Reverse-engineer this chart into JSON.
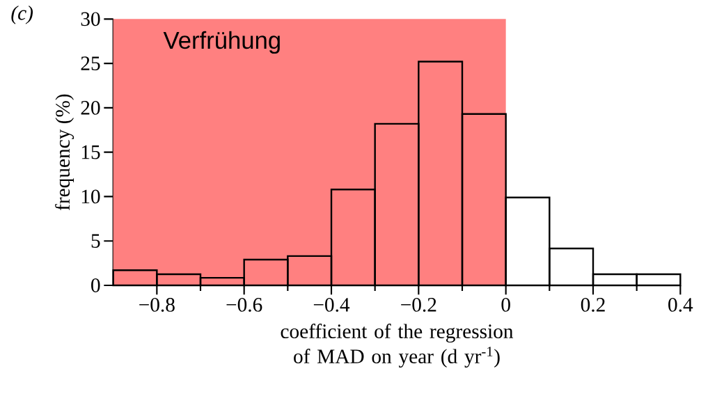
{
  "chart_data": {
    "type": "histogram",
    "bins": [
      -0.9,
      -0.8,
      -0.7,
      -0.6,
      -0.5,
      -0.4,
      -0.3,
      -0.2,
      -0.1,
      0,
      0.1,
      0.2,
      0.3,
      0.4
    ],
    "values": [
      1.7,
      1.25,
      0.85,
      2.9,
      3.3,
      10.8,
      18.2,
      25.2,
      19.3,
      9.9,
      4.15,
      1.25,
      1.25
    ],
    "color": "#000000",
    "xlabel": "coefficient of the regression of MAD on year (d yr$^{-1}$)",
    "ylabel": "frequency (%)",
    "xlim": [
      -0.9,
      0.4
    ],
    "xticks": [
      {
        "value": -0.8,
        "label": "−0.8"
      },
      {
        "value": -0.6,
        "label": "−0.6"
      },
      {
        "value": -0.4,
        "label": "−0.4"
      },
      {
        "value": -0.2,
        "label": "−0.2"
      },
      0,
      0.2,
      0.4
    ],
    "ylim": [
      0,
      30
    ],
    "yticks": [
      0,
      5,
      10,
      15,
      20,
      25,
      30
    ],
    "bands": [
      {
        "axis": "x",
        "from": -0.9,
        "to": 0,
        "label": "Verfrühung",
        "color": "#ff8080"
      }
    ],
    "annotations": [
      "(c)"
    ],
    "grid": false
  }
}
